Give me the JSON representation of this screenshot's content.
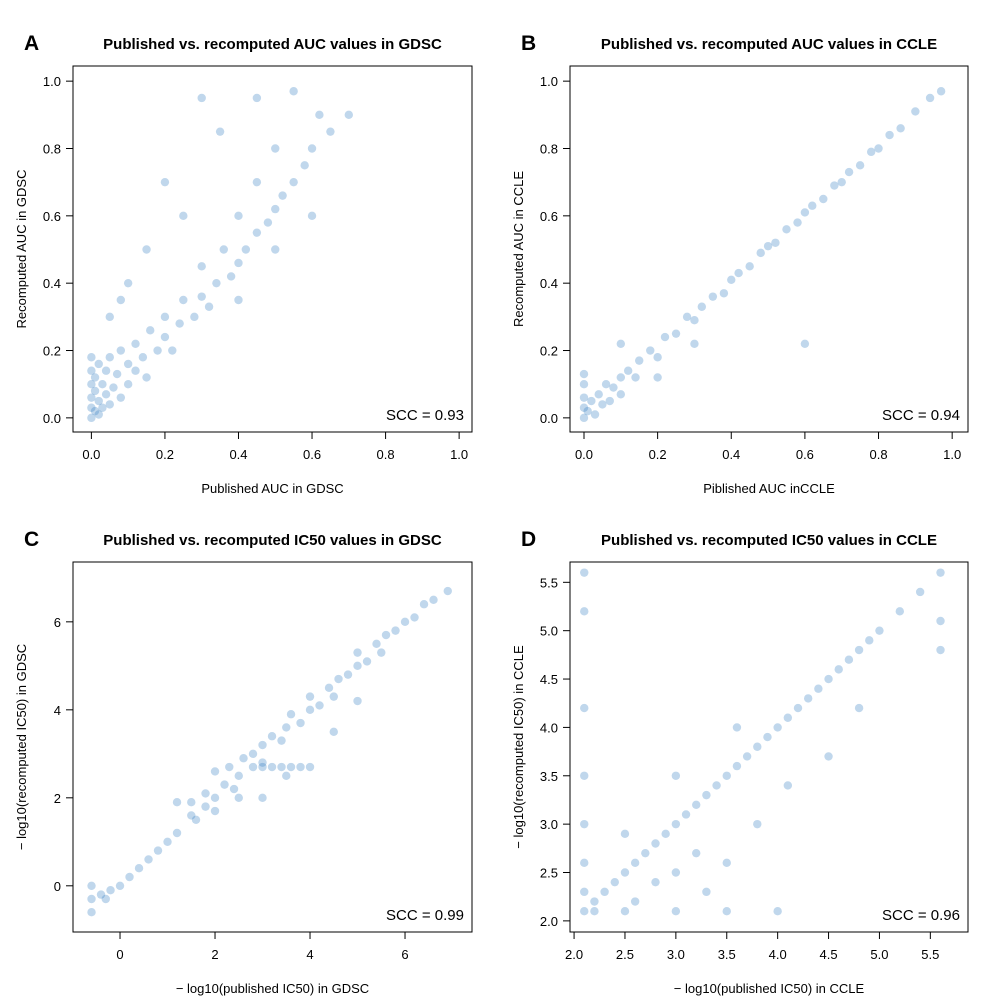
{
  "chart_data": [
    {
      "type": "scatter",
      "panel_letter": "A",
      "title": "Published vs. recomputed AUC values in GDSC",
      "xlabel": "Published AUC in GDSC",
      "ylabel": "Recomputed AUC in GDSC",
      "xlim": [
        -0.05,
        1.035
      ],
      "ylim": [
        -0.042,
        1.045
      ],
      "xticks": [
        0,
        0.2,
        0.4,
        0.6,
        0.8,
        1.0
      ],
      "xtick_labels": [
        "0.0",
        "0.2",
        "0.4",
        "0.6",
        "0.8",
        "1.0"
      ],
      "yticks": [
        0,
        0.2,
        0.4,
        0.6,
        0.8,
        1.0
      ],
      "ytick_labels": [
        "0.0",
        "0.2",
        "0.4",
        "0.6",
        "0.8",
        "1.0"
      ],
      "annotation": "SCC = 0.93",
      "color": "#2f79c0",
      "grid": false,
      "points": [
        [
          0,
          0
        ],
        [
          0,
          0.03
        ],
        [
          0,
          0.06
        ],
        [
          0,
          0.1
        ],
        [
          0,
          0.14
        ],
        [
          0,
          0.18
        ],
        [
          0.01,
          0.02
        ],
        [
          0.01,
          0.08
        ],
        [
          0.01,
          0.12
        ],
        [
          0.02,
          0.01
        ],
        [
          0.02,
          0.05
        ],
        [
          0.02,
          0.16
        ],
        [
          0.03,
          0.03
        ],
        [
          0.03,
          0.1
        ],
        [
          0.04,
          0.07
        ],
        [
          0.04,
          0.14
        ],
        [
          0.05,
          0.04
        ],
        [
          0.05,
          0.18
        ],
        [
          0.06,
          0.09
        ],
        [
          0.07,
          0.13
        ],
        [
          0.08,
          0.06
        ],
        [
          0.08,
          0.2
        ],
        [
          0.1,
          0.1
        ],
        [
          0.1,
          0.16
        ],
        [
          0.12,
          0.14
        ],
        [
          0.12,
          0.22
        ],
        [
          0.14,
          0.18
        ],
        [
          0.15,
          0.12
        ],
        [
          0.16,
          0.26
        ],
        [
          0.18,
          0.2
        ],
        [
          0.2,
          0.24
        ],
        [
          0.2,
          0.3
        ],
        [
          0.22,
          0.2
        ],
        [
          0.24,
          0.28
        ],
        [
          0.25,
          0.35
        ],
        [
          0.28,
          0.3
        ],
        [
          0.3,
          0.36
        ],
        [
          0.3,
          0.45
        ],
        [
          0.32,
          0.33
        ],
        [
          0.34,
          0.4
        ],
        [
          0.36,
          0.5
        ],
        [
          0.38,
          0.42
        ],
        [
          0.4,
          0.46
        ],
        [
          0.4,
          0.6
        ],
        [
          0.42,
          0.5
        ],
        [
          0.45,
          0.55
        ],
        [
          0.45,
          0.7
        ],
        [
          0.48,
          0.58
        ],
        [
          0.5,
          0.62
        ],
        [
          0.5,
          0.8
        ],
        [
          0.52,
          0.66
        ],
        [
          0.55,
          0.7
        ],
        [
          0.58,
          0.75
        ],
        [
          0.6,
          0.8
        ],
        [
          0.62,
          0.9
        ],
        [
          0.65,
          0.85
        ],
        [
          0.3,
          0.95
        ],
        [
          0.2,
          0.7
        ],
        [
          0.15,
          0.5
        ],
        [
          0.1,
          0.4
        ],
        [
          0.25,
          0.6
        ],
        [
          0.35,
          0.85
        ],
        [
          0.45,
          0.95
        ],
        [
          0.55,
          0.97
        ],
        [
          0.05,
          0.3
        ],
        [
          0.08,
          0.35
        ],
        [
          0.4,
          0.35
        ],
        [
          0.5,
          0.5
        ],
        [
          0.6,
          0.6
        ],
        [
          0.7,
          0.9
        ]
      ]
    },
    {
      "type": "scatter",
      "panel_letter": "B",
      "title": "Published vs. recomputed AUC values in CCLE",
      "xlabel": "Piblished AUC inCCLE",
      "ylabel": "Recomputed AUC in CCLE",
      "xlim": [
        -0.038,
        1.043
      ],
      "ylim": [
        -0.042,
        1.045
      ],
      "xticks": [
        0,
        0.2,
        0.4,
        0.6,
        0.8,
        1.0
      ],
      "xtick_labels": [
        "0.0",
        "0.2",
        "0.4",
        "0.6",
        "0.8",
        "1.0"
      ],
      "yticks": [
        0,
        0.2,
        0.4,
        0.6,
        0.8,
        1.0
      ],
      "ytick_labels": [
        "0.0",
        "0.2",
        "0.4",
        "0.6",
        "0.8",
        "1.0"
      ],
      "annotation": "SCC = 0.94",
      "color": "#2f79c0",
      "grid": false,
      "points": [
        [
          0,
          0
        ],
        [
          0,
          0.03
        ],
        [
          0,
          0.06
        ],
        [
          0,
          0.1
        ],
        [
          0,
          0.13
        ],
        [
          0.01,
          0.02
        ],
        [
          0.02,
          0.05
        ],
        [
          0.03,
          0.01
        ],
        [
          0.04,
          0.07
        ],
        [
          0.05,
          0.04
        ],
        [
          0.06,
          0.1
        ],
        [
          0.07,
          0.05
        ],
        [
          0.08,
          0.09
        ],
        [
          0.1,
          0.12
        ],
        [
          0.1,
          0.07
        ],
        [
          0.12,
          0.14
        ],
        [
          0.14,
          0.12
        ],
        [
          0.15,
          0.17
        ],
        [
          0.18,
          0.2
        ],
        [
          0.2,
          0.18
        ],
        [
          0.22,
          0.24
        ],
        [
          0.25,
          0.25
        ],
        [
          0.28,
          0.3
        ],
        [
          0.3,
          0.29
        ],
        [
          0.32,
          0.33
        ],
        [
          0.35,
          0.36
        ],
        [
          0.38,
          0.37
        ],
        [
          0.4,
          0.41
        ],
        [
          0.42,
          0.43
        ],
        [
          0.45,
          0.45
        ],
        [
          0.48,
          0.49
        ],
        [
          0.5,
          0.51
        ],
        [
          0.52,
          0.52
        ],
        [
          0.55,
          0.56
        ],
        [
          0.58,
          0.58
        ],
        [
          0.6,
          0.61
        ],
        [
          0.62,
          0.63
        ],
        [
          0.65,
          0.65
        ],
        [
          0.68,
          0.69
        ],
        [
          0.7,
          0.7
        ],
        [
          0.72,
          0.73
        ],
        [
          0.75,
          0.75
        ],
        [
          0.78,
          0.79
        ],
        [
          0.8,
          0.8
        ],
        [
          0.83,
          0.84
        ],
        [
          0.86,
          0.86
        ],
        [
          0.9,
          0.91
        ],
        [
          0.94,
          0.95
        ],
        [
          0.97,
          0.97
        ],
        [
          0.2,
          0.12
        ],
        [
          0.1,
          0.22
        ],
        [
          0.3,
          0.22
        ],
        [
          0.6,
          0.22
        ]
      ]
    },
    {
      "type": "scatter",
      "panel_letter": "C",
      "title": "Published vs. recomputed IC50 values in GDSC",
      "xlabel": "− log10(published IC50) in GDSC",
      "ylabel": "− log10(recomputed IC50) in GDSC",
      "xlim": [
        -0.99,
        7.41
      ],
      "ylim": [
        -1.05,
        7.36
      ],
      "xticks": [
        0,
        2,
        4,
        6
      ],
      "xtick_labels": [
        "0",
        "2",
        "4",
        "6"
      ],
      "yticks": [
        0,
        2,
        4,
        6
      ],
      "ytick_labels": [
        "0",
        "2",
        "4",
        "6"
      ],
      "annotation": "SCC = 0.99",
      "color": "#2f79c0",
      "grid": false,
      "points": [
        [
          -0.6,
          -0.6
        ],
        [
          -0.6,
          -0.3
        ],
        [
          -0.6,
          0
        ],
        [
          -0.4,
          -0.2
        ],
        [
          -0.3,
          -0.3
        ],
        [
          -0.2,
          -0.1
        ],
        [
          0,
          0
        ],
        [
          0.2,
          0.2
        ],
        [
          0.4,
          0.4
        ],
        [
          0.6,
          0.6
        ],
        [
          0.8,
          0.8
        ],
        [
          1,
          1
        ],
        [
          1.2,
          1.2
        ],
        [
          1.5,
          1.6
        ],
        [
          1.5,
          1.9
        ],
        [
          1.6,
          1.5
        ],
        [
          1.8,
          1.8
        ],
        [
          1.8,
          2.1
        ],
        [
          2,
          2
        ],
        [
          2,
          1.7
        ],
        [
          2.2,
          2.3
        ],
        [
          2.3,
          2.7
        ],
        [
          2.4,
          2.2
        ],
        [
          2.5,
          2.5
        ],
        [
          2.6,
          2.9
        ],
        [
          2.8,
          2.7
        ],
        [
          3,
          2.7
        ],
        [
          3.2,
          2.7
        ],
        [
          3.4,
          2.7
        ],
        [
          3.6,
          2.7
        ],
        [
          3.8,
          2.7
        ],
        [
          4,
          2.7
        ],
        [
          2.8,
          3
        ],
        [
          3,
          3.2
        ],
        [
          3,
          2.8
        ],
        [
          3.2,
          3.4
        ],
        [
          3.4,
          3.3
        ],
        [
          3.5,
          3.6
        ],
        [
          3.6,
          3.9
        ],
        [
          3.8,
          3.7
        ],
        [
          4,
          4
        ],
        [
          4,
          4.3
        ],
        [
          4.2,
          4.1
        ],
        [
          4.4,
          4.5
        ],
        [
          4.5,
          4.3
        ],
        [
          4.6,
          4.7
        ],
        [
          4.8,
          4.8
        ],
        [
          5,
          5
        ],
        [
          5,
          5.3
        ],
        [
          5.2,
          5.1
        ],
        [
          5.4,
          5.5
        ],
        [
          5.5,
          5.3
        ],
        [
          5.6,
          5.7
        ],
        [
          5.8,
          5.8
        ],
        [
          6,
          6
        ],
        [
          6.2,
          6.1
        ],
        [
          6.4,
          6.4
        ],
        [
          6.6,
          6.5
        ],
        [
          6.9,
          6.7
        ],
        [
          3,
          2
        ],
        [
          3.5,
          2.5
        ],
        [
          2.5,
          2
        ],
        [
          4.5,
          3.5
        ],
        [
          5,
          4.2
        ],
        [
          2,
          2.6
        ],
        [
          1.2,
          1.9
        ]
      ]
    },
    {
      "type": "scatter",
      "panel_letter": "D",
      "title": "Published vs. recomputed IC50 values in CCLE",
      "xlabel": "− log10(published IC50) in CCLE",
      "ylabel": "− log10(recomputed IC50) in CCLE",
      "xlim": [
        1.96,
        5.87
      ],
      "ylim": [
        1.885,
        5.71
      ],
      "xticks": [
        2,
        2.5,
        3,
        3.5,
        4,
        4.5,
        5,
        5.5
      ],
      "xtick_labels": [
        "2.0",
        "2.5",
        "3.0",
        "3.5",
        "4.0",
        "4.5",
        "5.0",
        "5.5"
      ],
      "yticks": [
        2,
        2.5,
        3,
        3.5,
        4,
        4.5,
        5,
        5.5
      ],
      "ytick_labels": [
        "2.0",
        "2.5",
        "3.0",
        "3.5",
        "4.0",
        "4.5",
        "5.0",
        "5.5"
      ],
      "annotation": "SCC = 0.96",
      "color": "#2f79c0",
      "grid": false,
      "points": [
        [
          2.1,
          5.6
        ],
        [
          5.6,
          5.6
        ],
        [
          2.1,
          2.1
        ],
        [
          2.1,
          2.3
        ],
        [
          2.1,
          2.6
        ],
        [
          2.1,
          3.0
        ],
        [
          2.1,
          3.5
        ],
        [
          2.1,
          4.2
        ],
        [
          2.1,
          5.2
        ],
        [
          2.2,
          2.1
        ],
        [
          2.5,
          2.1
        ],
        [
          3,
          2.1
        ],
        [
          3.5,
          2.1
        ],
        [
          4,
          2.1
        ],
        [
          2.2,
          2.2
        ],
        [
          2.3,
          2.3
        ],
        [
          2.4,
          2.4
        ],
        [
          2.5,
          2.5
        ],
        [
          2.6,
          2.6
        ],
        [
          2.7,
          2.7
        ],
        [
          2.8,
          2.8
        ],
        [
          2.9,
          2.9
        ],
        [
          3,
          3
        ],
        [
          3.1,
          3.1
        ],
        [
          3.2,
          3.2
        ],
        [
          3.3,
          3.3
        ],
        [
          3.4,
          3.4
        ],
        [
          3.5,
          3.5
        ],
        [
          3.6,
          3.6
        ],
        [
          3.7,
          3.7
        ],
        [
          3.8,
          3.8
        ],
        [
          3.9,
          3.9
        ],
        [
          4,
          4
        ],
        [
          4.1,
          4.1
        ],
        [
          4.2,
          4.2
        ],
        [
          4.3,
          4.3
        ],
        [
          4.4,
          4.4
        ],
        [
          4.5,
          4.5
        ],
        [
          4.6,
          4.6
        ],
        [
          4.7,
          4.7
        ],
        [
          4.8,
          4.8
        ],
        [
          4.9,
          4.9
        ],
        [
          5,
          5
        ],
        [
          5.2,
          5.2
        ],
        [
          5.4,
          5.4
        ],
        [
          2.8,
          2.4
        ],
        [
          3,
          2.5
        ],
        [
          3.2,
          2.7
        ],
        [
          3.5,
          2.6
        ],
        [
          3.8,
          3.0
        ],
        [
          4.1,
          3.4
        ],
        [
          4.5,
          3.7
        ],
        [
          2.6,
          2.2
        ],
        [
          3.3,
          2.3
        ],
        [
          4.8,
          4.2
        ],
        [
          5.6,
          4.8
        ],
        [
          5.6,
          5.1
        ],
        [
          3.6,
          4.0
        ],
        [
          3.0,
          3.5
        ],
        [
          2.5,
          2.9
        ]
      ]
    }
  ]
}
